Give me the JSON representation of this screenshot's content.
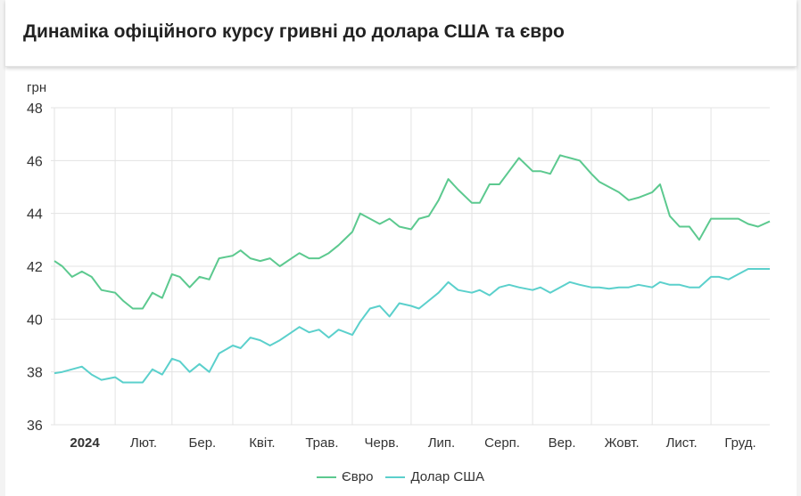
{
  "title": "Динаміка офіційного курсу гривні до долара США та євро",
  "chart_data": {
    "type": "line",
    "title": "Динаміка офіційного курсу гривні до долара США та євро",
    "ylabel": "грн",
    "xlabel": "",
    "ylim": [
      36,
      48
    ],
    "yticks": [
      36,
      38,
      40,
      42,
      44,
      46,
      48
    ],
    "xlim": [
      "2024-01-01",
      "2024-12-31"
    ],
    "xtick_labels": [
      "2024",
      "Лют.",
      "Бер.",
      "Квіт.",
      "Трав.",
      "Черв.",
      "Лип.",
      "Серп.",
      "Вер.",
      "Жовт.",
      "Лист.",
      "Груд."
    ],
    "grid": true,
    "legend": "bottom",
    "x": [
      "2024-01-01",
      "2024-01-05",
      "2024-01-10",
      "2024-01-15",
      "2024-01-20",
      "2024-01-25",
      "2024-02-01",
      "2024-02-05",
      "2024-02-10",
      "2024-02-15",
      "2024-02-20",
      "2024-02-25",
      "2024-03-01",
      "2024-03-05",
      "2024-03-10",
      "2024-03-15",
      "2024-03-20",
      "2024-03-25",
      "2024-04-01",
      "2024-04-05",
      "2024-04-10",
      "2024-04-15",
      "2024-04-20",
      "2024-04-25",
      "2024-05-01",
      "2024-05-05",
      "2024-05-10",
      "2024-05-15",
      "2024-05-20",
      "2024-05-25",
      "2024-06-01",
      "2024-06-05",
      "2024-06-10",
      "2024-06-15",
      "2024-06-20",
      "2024-06-25",
      "2024-07-01",
      "2024-07-05",
      "2024-07-10",
      "2024-07-15",
      "2024-07-20",
      "2024-07-25",
      "2024-08-01",
      "2024-08-05",
      "2024-08-10",
      "2024-08-15",
      "2024-08-20",
      "2024-08-25",
      "2024-09-01",
      "2024-09-05",
      "2024-09-10",
      "2024-09-15",
      "2024-09-20",
      "2024-09-25",
      "2024-10-01",
      "2024-10-05",
      "2024-10-10",
      "2024-10-15",
      "2024-10-20",
      "2024-10-25",
      "2024-11-01",
      "2024-11-05",
      "2024-11-10",
      "2024-11-15",
      "2024-11-20",
      "2024-11-25",
      "2024-12-01",
      "2024-12-05",
      "2024-12-10",
      "2024-12-15",
      "2024-12-20",
      "2024-12-25",
      "2024-12-31"
    ],
    "series": [
      {
        "name": "Євро",
        "color": "#5cc98f",
        "values": [
          42.2,
          42.0,
          41.6,
          41.8,
          41.6,
          41.1,
          41.0,
          40.7,
          40.4,
          40.4,
          41.0,
          40.8,
          41.7,
          41.6,
          41.2,
          41.6,
          41.5,
          42.3,
          42.4,
          42.6,
          42.3,
          42.2,
          42.3,
          42.0,
          42.3,
          42.5,
          42.3,
          42.3,
          42.5,
          42.8,
          43.3,
          44.0,
          43.8,
          43.6,
          43.8,
          43.5,
          43.4,
          43.8,
          43.9,
          44.5,
          45.3,
          44.9,
          44.4,
          44.4,
          45.1,
          45.1,
          45.6,
          46.1,
          45.6,
          45.6,
          45.5,
          46.2,
          46.1,
          46.0,
          45.5,
          45.2,
          45.0,
          44.8,
          44.5,
          44.6,
          44.8,
          45.1,
          43.9,
          43.5,
          43.5,
          43.0,
          43.8,
          43.8,
          43.8,
          43.8,
          43.6,
          43.5,
          43.7
        ]
      },
      {
        "name": "Долар США",
        "color": "#5bd0cc",
        "values": [
          37.95,
          38.0,
          38.1,
          38.2,
          37.9,
          37.7,
          37.8,
          37.6,
          37.6,
          37.6,
          38.1,
          37.9,
          38.5,
          38.4,
          38.0,
          38.3,
          38.0,
          38.7,
          39.0,
          38.9,
          39.3,
          39.2,
          39.0,
          39.2,
          39.5,
          39.7,
          39.5,
          39.6,
          39.3,
          39.6,
          39.4,
          39.9,
          40.4,
          40.5,
          40.1,
          40.6,
          40.5,
          40.4,
          40.7,
          41.0,
          41.4,
          41.1,
          41.0,
          41.1,
          40.9,
          41.2,
          41.3,
          41.2,
          41.1,
          41.2,
          41.0,
          41.2,
          41.4,
          41.3,
          41.2,
          41.2,
          41.15,
          41.2,
          41.2,
          41.3,
          41.2,
          41.4,
          41.3,
          41.3,
          41.2,
          41.2,
          41.6,
          41.6,
          41.5,
          41.7,
          41.9,
          41.9,
          41.9
        ]
      }
    ]
  }
}
